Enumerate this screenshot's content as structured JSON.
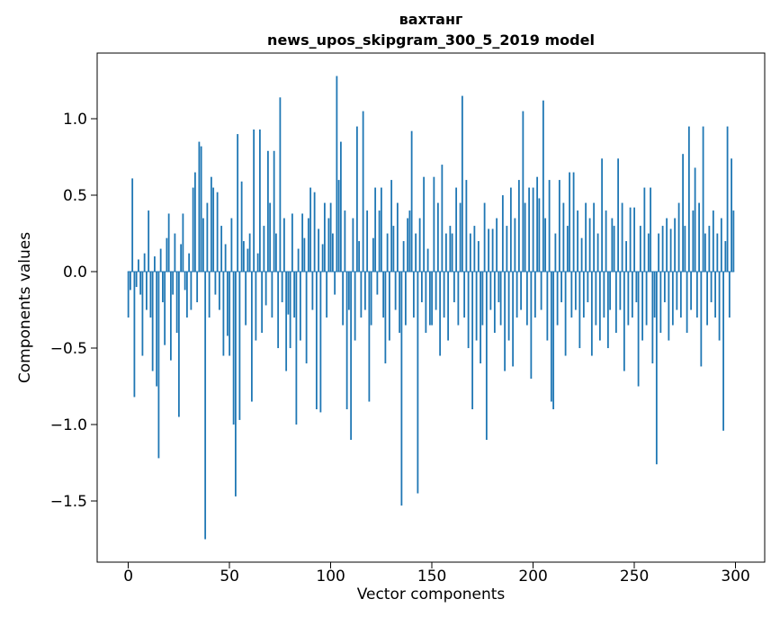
{
  "chart_data": {
    "type": "bar",
    "title_line1": "вахтанг",
    "title_line2": "news_upos_skipgram_300_5_2019 model",
    "xlabel": "Vector components",
    "ylabel": "Components values",
    "bar_color": "#1f77b4",
    "n_components": 300,
    "x_ticks": [
      0,
      50,
      100,
      150,
      200,
      250,
      300
    ],
    "y_ticks": [
      -1.5,
      -1.0,
      -0.5,
      0.0,
      0.5,
      1.0
    ],
    "xlim": [
      -15.4,
      314.4
    ],
    "ylim": [
      -1.9,
      1.43
    ],
    "values": [
      -0.3,
      -0.12,
      0.61,
      -0.82,
      -0.1,
      0.08,
      -0.15,
      -0.55,
      0.12,
      -0.25,
      0.4,
      -0.3,
      -0.65,
      0.1,
      -0.75,
      -1.22,
      0.15,
      -0.2,
      -0.48,
      0.22,
      0.38,
      -0.58,
      -0.15,
      0.25,
      -0.4,
      -0.95,
      0.18,
      0.38,
      -0.12,
      -0.3,
      0.12,
      -0.25,
      0.55,
      0.65,
      -0.2,
      0.85,
      0.82,
      0.35,
      -1.75,
      0.45,
      -0.3,
      0.62,
      0.55,
      -0.15,
      0.52,
      -0.25,
      0.3,
      -0.55,
      0.18,
      -0.42,
      -0.55,
      0.35,
      -1.0,
      -1.47,
      0.9,
      -0.97,
      0.59,
      0.2,
      -0.35,
      0.15,
      0.25,
      -0.85,
      0.93,
      -0.45,
      0.12,
      0.93,
      -0.4,
      0.3,
      -0.22,
      0.79,
      0.45,
      -0.3,
      0.79,
      0.25,
      -0.5,
      1.14,
      -0.2,
      0.35,
      -0.65,
      -0.28,
      -0.5,
      0.38,
      -0.3,
      -1.0,
      0.15,
      -0.45,
      0.38,
      0.22,
      -0.6,
      0.35,
      0.55,
      -0.25,
      0.52,
      -0.9,
      0.28,
      -0.92,
      0.18,
      0.45,
      -0.3,
      0.35,
      0.45,
      0.25,
      -0.15,
      1.28,
      0.6,
      0.85,
      -0.35,
      0.4,
      -0.9,
      -0.25,
      -1.1,
      0.35,
      -0.45,
      0.95,
      0.2,
      -0.3,
      1.05,
      -0.25,
      0.4,
      -0.85,
      -0.35,
      0.22,
      0.55,
      -0.15,
      0.4,
      0.55,
      -0.3,
      -0.6,
      0.25,
      -0.45,
      0.6,
      0.3,
      -0.25,
      0.45,
      -0.4,
      -1.53,
      0.2,
      -0.35,
      0.35,
      0.4,
      0.92,
      -0.3,
      0.25,
      -1.45,
      0.35,
      -0.2,
      0.62,
      -0.4,
      0.15,
      -0.35,
      -0.35,
      0.62,
      -0.25,
      0.45,
      -0.55,
      0.7,
      -0.3,
      0.25,
      -0.45,
      0.3,
      0.25,
      -0.2,
      0.55,
      -0.35,
      0.45,
      1.15,
      -0.3,
      0.6,
      -0.5,
      0.25,
      -0.9,
      0.3,
      -0.45,
      0.2,
      -0.6,
      -0.35,
      0.45,
      -1.1,
      0.28,
      -0.25,
      0.28,
      -0.4,
      0.35,
      -0.2,
      -0.35,
      0.5,
      -0.65,
      0.3,
      -0.45,
      0.55,
      -0.62,
      0.35,
      -0.3,
      0.6,
      -0.25,
      1.05,
      0.45,
      -0.35,
      0.55,
      -0.7,
      0.55,
      -0.3,
      0.62,
      0.48,
      -0.25,
      1.12,
      0.35,
      -0.45,
      0.6,
      -0.85,
      -0.9,
      0.25,
      -0.35,
      0.6,
      -0.2,
      0.45,
      -0.55,
      0.3,
      0.65,
      -0.3,
      0.65,
      -0.25,
      0.4,
      -0.5,
      0.22,
      -0.3,
      0.45,
      -0.2,
      0.35,
      -0.55,
      0.45,
      -0.35,
      0.25,
      -0.45,
      0.74,
      -0.3,
      0.4,
      -0.5,
      -0.25,
      0.35,
      0.3,
      -0.4,
      0.74,
      -0.25,
      0.45,
      -0.65,
      0.2,
      -0.35,
      0.42,
      -0.3,
      0.42,
      -0.2,
      -0.75,
      0.3,
      -0.45,
      0.55,
      -0.35,
      0.25,
      0.55,
      -0.6,
      -0.3,
      -1.26,
      0.25,
      -0.4,
      0.3,
      -0.2,
      0.35,
      -0.45,
      0.28,
      -0.35,
      0.35,
      -0.25,
      0.45,
      -0.3,
      0.77,
      0.3,
      -0.4,
      0.95,
      -0.25,
      0.4,
      0.68,
      -0.3,
      0.45,
      -0.62,
      0.95,
      0.25,
      -0.35,
      0.3,
      -0.2,
      0.4,
      -0.3,
      0.25,
      -0.45,
      0.35,
      -1.04,
      0.2,
      0.95,
      -0.3,
      0.74,
      0.4
    ]
  }
}
